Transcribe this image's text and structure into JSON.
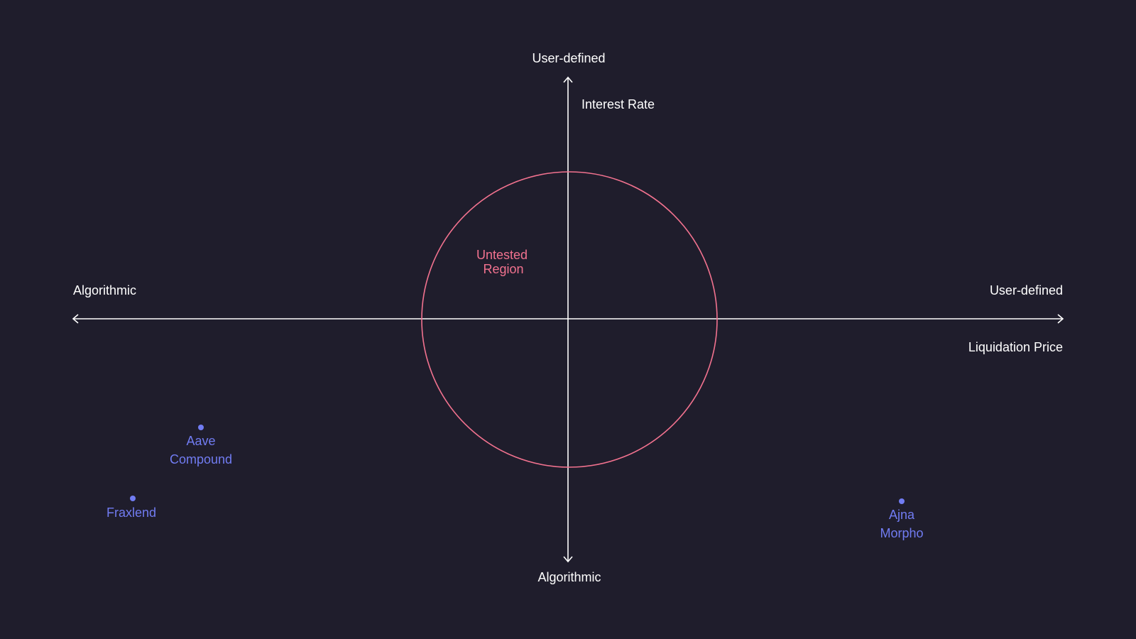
{
  "axes": {
    "y_top": "User-defined",
    "y_bottom": "Algorithmic",
    "y_title": "Interest Rate",
    "x_left": "Algorithmic",
    "x_right": "User-defined",
    "x_title": "Liquidation Price"
  },
  "region": {
    "line1": "Untested",
    "line2": "Region"
  },
  "points": [
    {
      "lines": [
        "Aave",
        "Compound"
      ]
    },
    {
      "lines": [
        "Fraxlend"
      ]
    },
    {
      "lines": [
        "Ajna",
        "Morpho"
      ]
    }
  ],
  "colors": {
    "background": "#1f1d2c",
    "axis": "#ffffff",
    "region": "#f2728f",
    "points": "#717cf2"
  }
}
